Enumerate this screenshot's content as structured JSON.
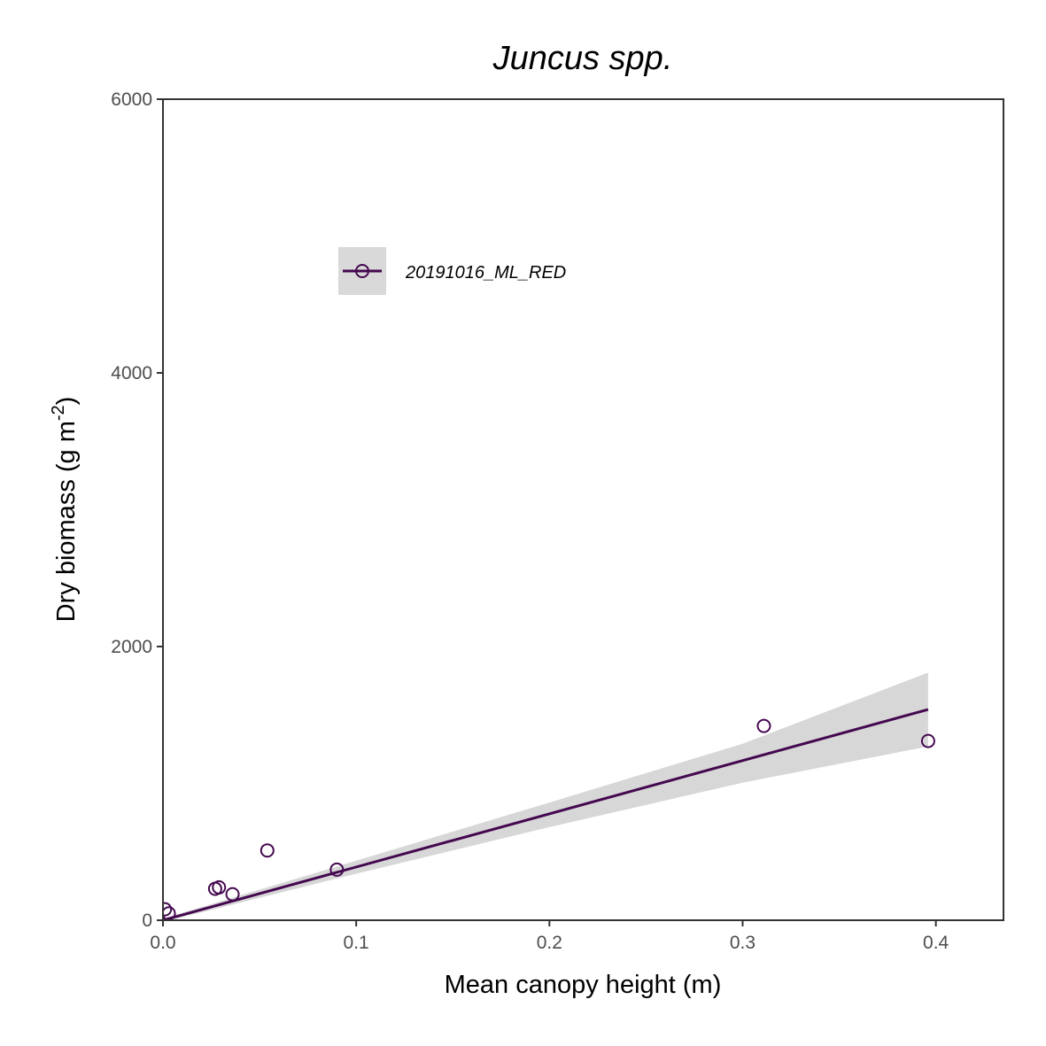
{
  "chart_data": {
    "type": "scatter",
    "title": "Juncus spp.",
    "xlabel": "Mean canopy height (m)",
    "ylabel": "Dry biomass (g m",
    "ylabel_superscript": "-2",
    "ylabel_suffix": ")",
    "xlim": [
      0,
      0.435
    ],
    "ylim": [
      0,
      6000
    ],
    "x_ticks": [
      0.0,
      0.1,
      0.2,
      0.3,
      0.4
    ],
    "x_tick_labels": [
      "0.0",
      "0.1",
      "0.2",
      "0.3",
      "0.4"
    ],
    "y_ticks": [
      0,
      2000,
      4000,
      6000
    ],
    "y_tick_labels": [
      "0",
      "2000",
      "4000",
      "6000"
    ],
    "grid": false,
    "legend_position": "top-left (inside)",
    "series": [
      {
        "name": "20191016_ML_RED",
        "color": "#44084f",
        "marker": "open-circle",
        "points": [
          {
            "x": 0.001,
            "y": 80
          },
          {
            "x": 0.003,
            "y": 50
          },
          {
            "x": 0.027,
            "y": 230
          },
          {
            "x": 0.029,
            "y": 240
          },
          {
            "x": 0.036,
            "y": 190
          },
          {
            "x": 0.054,
            "y": 510
          },
          {
            "x": 0.09,
            "y": 370
          },
          {
            "x": 0.311,
            "y": 1420
          },
          {
            "x": 0.396,
            "y": 1310
          }
        ],
        "fit": {
          "x": [
            0.0,
            0.396
          ],
          "y": [
            0,
            1540
          ]
        },
        "confidence_band": {
          "x": [
            0.0,
            0.1,
            0.2,
            0.3,
            0.396
          ],
          "upper": [
            12,
            435,
            860,
            1290,
            1810
          ],
          "lower": [
            -12,
            340,
            680,
            1005,
            1270
          ]
        }
      }
    ]
  }
}
